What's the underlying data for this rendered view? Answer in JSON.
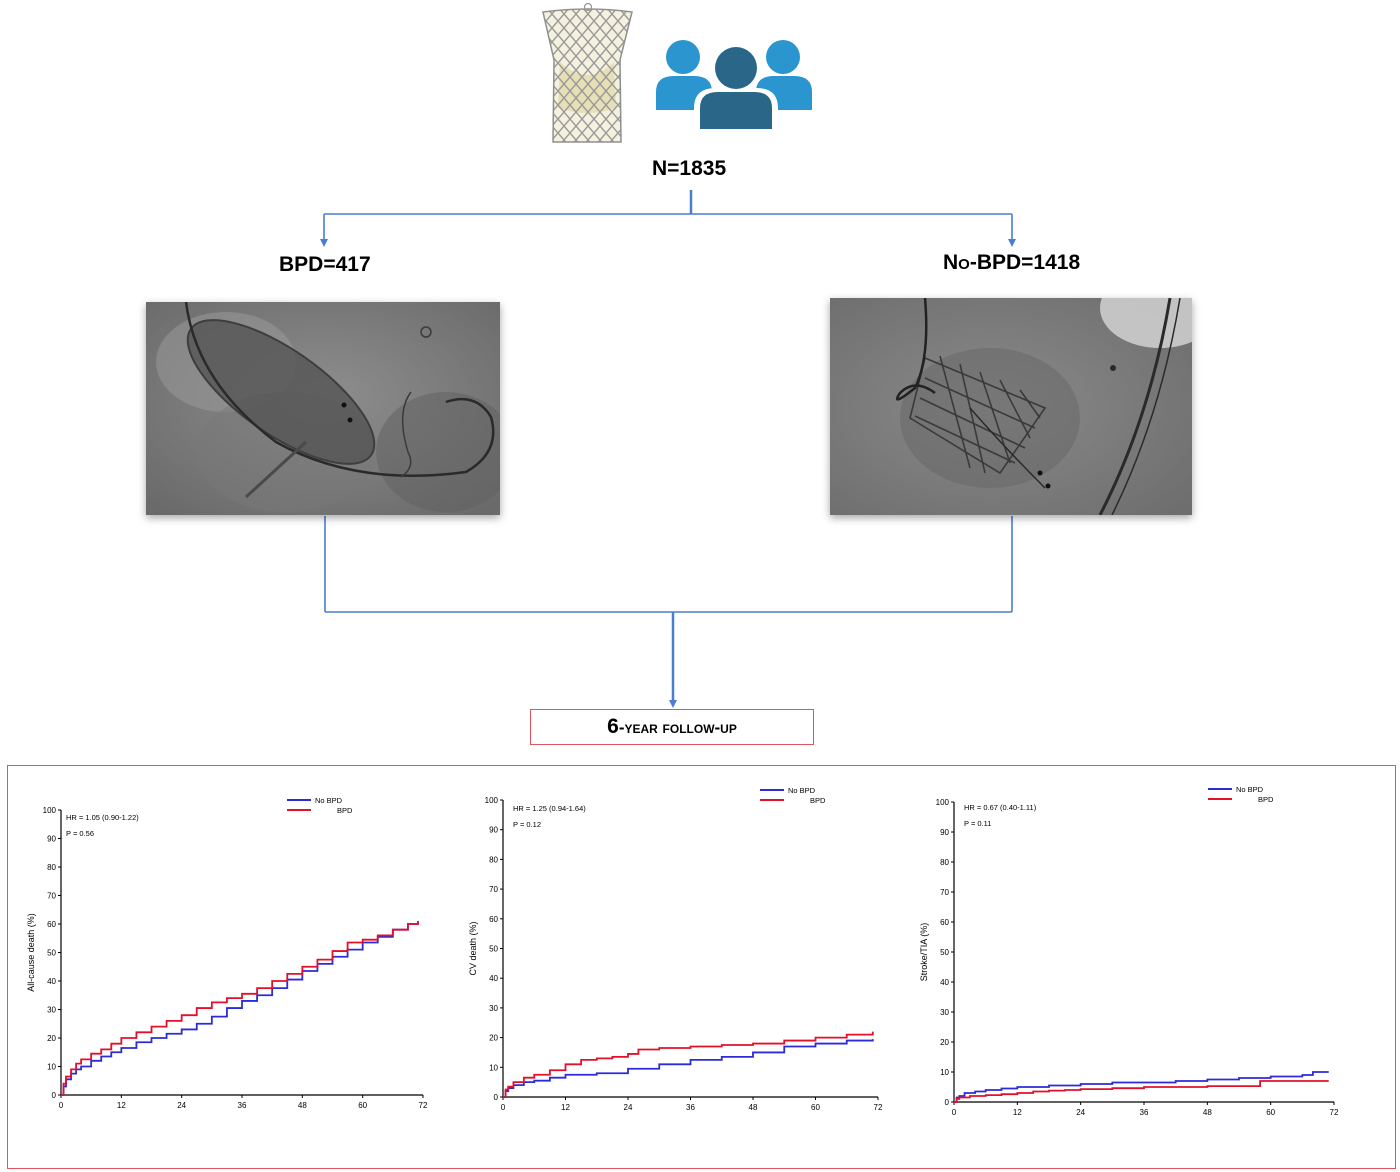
{
  "flow": {
    "total": "N=1835",
    "left_label": "BPD=417",
    "right_label": "No-BPD=1418",
    "followup": "6-year follow-up"
  },
  "colors": {
    "no_bpd": "#2b2bd9",
    "bpd": "#e3102a",
    "flow_line": "#4a7fcf",
    "frame": "#e05560",
    "people_light": "#2b95cf",
    "people_dark": "#2a6688"
  },
  "icons": [
    "valve-stent-icon",
    "people-group-icon"
  ],
  "chart_data": [
    {
      "type": "line",
      "ylabel": "All-cause death (%)",
      "xlabel": "",
      "xlim": [
        0,
        72
      ],
      "ylim": [
        0,
        100
      ],
      "x_ticks": [
        0,
        12,
        24,
        36,
        48,
        60,
        72
      ],
      "y_ticks": [
        0,
        10,
        20,
        30,
        40,
        50,
        60,
        70,
        80,
        90,
        100
      ],
      "grid": false,
      "legend_position": "top-right",
      "annotations": [
        "HR = 1.05 (0.90-1.22)",
        "P = 0.56"
      ],
      "series": [
        {
          "name": "No BPD",
          "x": [
            0,
            0.5,
            1,
            2,
            3,
            4,
            6,
            8,
            10,
            12,
            15,
            18,
            21,
            24,
            27,
            30,
            33,
            36,
            39,
            42,
            45,
            48,
            51,
            54,
            57,
            60,
            63,
            66,
            69,
            71
          ],
          "y": [
            0,
            3,
            5.5,
            7.5,
            9,
            10,
            12,
            13.5,
            15,
            16.5,
            18.5,
            20,
            21.5,
            23,
            25,
            27.5,
            30.5,
            33,
            35,
            37.5,
            40.5,
            43.5,
            46,
            48.5,
            51,
            53.5,
            55.5,
            58,
            60,
            61
          ]
        },
        {
          "name": "BPD",
          "x": [
            0,
            0.5,
            1,
            2,
            3,
            4,
            6,
            8,
            10,
            12,
            15,
            18,
            21,
            24,
            27,
            30,
            33,
            36,
            39,
            42,
            45,
            48,
            51,
            54,
            57,
            60,
            63,
            66,
            69,
            71
          ],
          "y": [
            0,
            4,
            6.5,
            9,
            11,
            12.5,
            14.5,
            16,
            18,
            20,
            22,
            24,
            26,
            28,
            30.5,
            32.5,
            34,
            35.5,
            37.5,
            40,
            42.5,
            45,
            47.5,
            50.5,
            53.5,
            54.5,
            56,
            58,
            60,
            61
          ]
        }
      ]
    },
    {
      "type": "line",
      "ylabel": "CV death (%)",
      "xlabel": "",
      "xlim": [
        0,
        72
      ],
      "ylim": [
        0,
        100
      ],
      "x_ticks": [
        0,
        12,
        24,
        36,
        48,
        60,
        72
      ],
      "y_ticks": [
        0,
        10,
        20,
        30,
        40,
        50,
        60,
        70,
        80,
        90,
        100
      ],
      "grid": false,
      "legend_position": "top-right",
      "annotations": [
        "HR = 1.25 (0.94-1.64)",
        "P = 0.12"
      ],
      "series": [
        {
          "name": "No BPD",
          "x": [
            0,
            0.5,
            1,
            2,
            4,
            6,
            9,
            12,
            18,
            24,
            30,
            36,
            42,
            48,
            54,
            60,
            66,
            71
          ],
          "y": [
            0,
            2,
            3,
            4,
            5,
            5.5,
            6.5,
            7.5,
            8,
            9.5,
            11,
            12.5,
            13.5,
            15,
            17,
            18,
            19,
            19.5
          ]
        },
        {
          "name": "BPD",
          "x": [
            0,
            0.5,
            1,
            2,
            4,
            6,
            9,
            12,
            15,
            18,
            21,
            24,
            26,
            30,
            36,
            42,
            48,
            54,
            60,
            66,
            71
          ],
          "y": [
            0,
            2.5,
            3.5,
            5,
            6.5,
            7.5,
            9,
            11,
            12.5,
            13,
            13.5,
            14.5,
            16,
            16.5,
            17,
            17.5,
            18,
            19,
            20,
            21,
            22
          ]
        }
      ]
    },
    {
      "type": "line",
      "ylabel": "Stroke/TIA (%)",
      "xlabel": "",
      "xlim": [
        0,
        72
      ],
      "ylim": [
        0,
        100
      ],
      "x_ticks": [
        0,
        12,
        24,
        36,
        48,
        60,
        72
      ],
      "y_ticks": [
        0,
        10,
        20,
        30,
        40,
        50,
        60,
        70,
        80,
        90,
        100
      ],
      "grid": false,
      "legend_position": "top-right",
      "annotations": [
        "HR = 0.67 (0.40-1.11)",
        "P = 0.11"
      ],
      "series": [
        {
          "name": "No BPD",
          "x": [
            0,
            0.5,
            1,
            2,
            4,
            6,
            9,
            12,
            18,
            24,
            30,
            36,
            42,
            48,
            54,
            60,
            66,
            68,
            71
          ],
          "y": [
            0,
            1.5,
            2,
            3,
            3.5,
            4,
            4.5,
            5,
            5.5,
            6,
            6.5,
            6.5,
            7,
            7.5,
            8,
            8.5,
            9,
            10,
            10
          ]
        },
        {
          "name": "BPD",
          "x": [
            0,
            0.5,
            1,
            3,
            6,
            9,
            12,
            15,
            18,
            21,
            24,
            30,
            36,
            42,
            48,
            54,
            57,
            58,
            60,
            66,
            71
          ],
          "y": [
            0,
            1,
            1.5,
            2,
            2.3,
            2.6,
            3,
            3.5,
            3.8,
            4,
            4.3,
            4.6,
            5,
            5,
            5.3,
            5.3,
            5.3,
            7,
            7,
            7,
            7
          ]
        }
      ]
    }
  ]
}
